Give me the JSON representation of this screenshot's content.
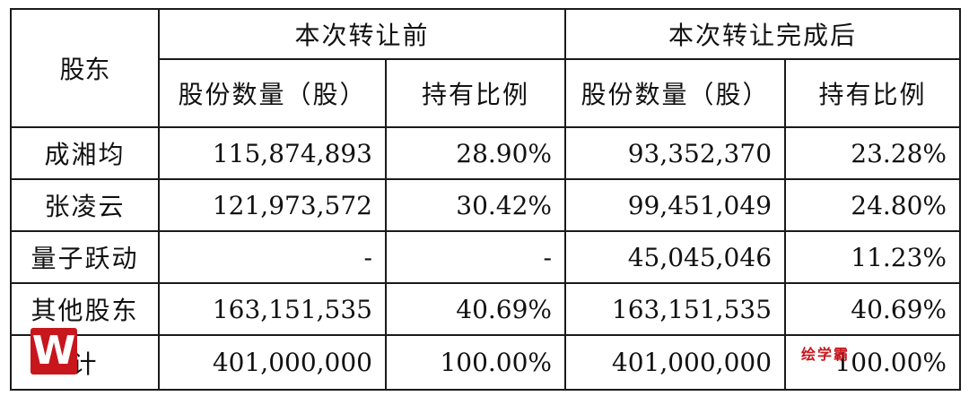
{
  "headers": {
    "shareholder": "股东",
    "before": "本次转让前",
    "after": "本次转让完成后",
    "shares": "股份数量（股）",
    "ratio": "持有比例"
  },
  "rows": [
    {
      "name": "成湘均",
      "before_shares": "115,874,893",
      "before_ratio": "28.90%",
      "after_shares": "93,352,370",
      "after_ratio": "23.28%"
    },
    {
      "name": "张凌云",
      "before_shares": "121,973,572",
      "before_ratio": "30.42%",
      "after_shares": "99,451,049",
      "after_ratio": "24.80%"
    },
    {
      "name": "量子跃动",
      "before_shares": "-",
      "before_ratio": "-",
      "after_shares": "45,045,046",
      "after_ratio": "11.23%"
    },
    {
      "name": "其他股东",
      "before_shares": "163,151,535",
      "before_ratio": "40.69%",
      "after_shares": "163,151,535",
      "after_ratio": "40.69%"
    },
    {
      "name": "计",
      "before_shares": "401,000,000",
      "before_ratio": "100.00%",
      "after_shares": "401,000,000",
      "after_ratio": "100.00%"
    }
  ],
  "watermark": {
    "logo": "W",
    "text": "绘学霸"
  }
}
